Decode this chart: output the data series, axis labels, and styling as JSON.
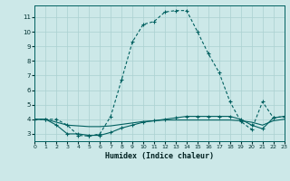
{
  "xlabel": "Humidex (Indice chaleur)",
  "background_color": "#cce8e8",
  "grid_color": "#aad0d0",
  "line_color": "#006060",
  "xlim": [
    0,
    23
  ],
  "ylim": [
    2.5,
    11.8
  ],
  "xticks": [
    0,
    1,
    2,
    3,
    4,
    5,
    6,
    7,
    8,
    9,
    10,
    11,
    12,
    13,
    14,
    15,
    16,
    17,
    18,
    19,
    20,
    21,
    22,
    23
  ],
  "yticks": [
    3,
    4,
    5,
    6,
    7,
    8,
    9,
    10,
    11
  ],
  "series1_x": [
    0,
    1,
    2,
    3,
    4,
    5,
    6,
    7,
    8,
    9,
    10,
    11,
    12,
    13,
    14,
    15,
    16,
    17,
    18,
    19,
    20,
    21,
    22,
    23
  ],
  "series1_y": [
    4.0,
    4.0,
    4.0,
    3.6,
    2.9,
    2.85,
    3.0,
    4.2,
    6.7,
    9.3,
    10.5,
    10.7,
    11.35,
    11.45,
    11.45,
    10.0,
    8.5,
    7.2,
    5.2,
    3.85,
    3.3,
    5.2,
    4.1,
    4.2
  ],
  "series2_x": [
    0,
    1,
    2,
    3,
    4,
    5,
    6,
    7,
    8,
    9,
    10,
    11,
    12,
    13,
    14,
    15,
    16,
    17,
    18,
    19,
    20,
    21,
    22,
    23
  ],
  "series2_y": [
    4.0,
    4.0,
    3.6,
    3.0,
    3.0,
    2.9,
    2.9,
    3.1,
    3.4,
    3.6,
    3.8,
    3.9,
    4.0,
    4.1,
    4.2,
    4.2,
    4.2,
    4.2,
    4.2,
    4.0,
    3.6,
    3.35,
    4.1,
    4.2
  ],
  "series3_x": [
    0,
    1,
    2,
    3,
    4,
    5,
    6,
    7,
    8,
    9,
    10,
    11,
    12,
    13,
    14,
    15,
    16,
    17,
    18,
    19,
    20,
    21,
    22,
    23
  ],
  "series3_y": [
    4.0,
    4.0,
    3.8,
    3.6,
    3.55,
    3.5,
    3.5,
    3.55,
    3.65,
    3.75,
    3.85,
    3.9,
    3.95,
    3.95,
    3.95,
    3.95,
    3.95,
    3.95,
    3.95,
    3.9,
    3.8,
    3.6,
    3.9,
    4.0
  ]
}
